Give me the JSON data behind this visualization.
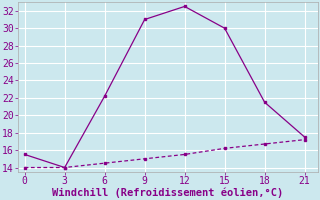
{
  "line1_x": [
    0,
    3,
    6,
    9,
    12,
    15,
    18,
    21
  ],
  "line1_y": [
    15.5,
    14.0,
    22.2,
    31.0,
    32.5,
    30.0,
    21.5,
    17.5
  ],
  "line2_x": [
    0,
    3,
    6,
    9,
    12,
    15,
    18,
    21
  ],
  "line2_y": [
    14.0,
    14.0,
    14.5,
    15.0,
    15.5,
    16.2,
    16.7,
    17.2
  ],
  "color": "#880088",
  "xlabel": "Windchill (Refroidissement éolien,°C)",
  "xlim": [
    -0.5,
    22
  ],
  "ylim": [
    13.5,
    33
  ],
  "yticks": [
    14,
    16,
    18,
    20,
    22,
    24,
    26,
    28,
    30,
    32
  ],
  "xticks": [
    0,
    3,
    6,
    9,
    12,
    15,
    18,
    21
  ],
  "bg_color": "#cce8ee",
  "grid_color": "#b0d8e0",
  "xlabel_color": "#880088",
  "xlabel_fontsize": 7.5,
  "tick_fontsize": 7
}
